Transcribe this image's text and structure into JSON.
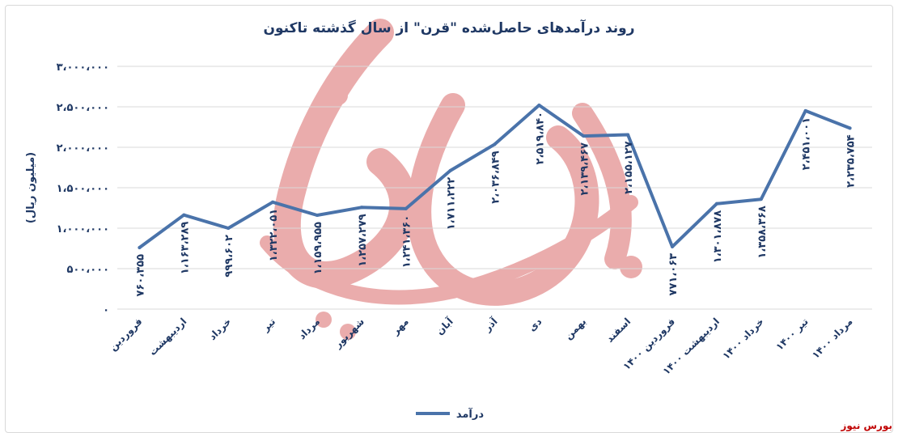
{
  "brand": "بورس نیوز",
  "chart_data": {
    "type": "line",
    "title": "روند درآمدهای حاصل‌شده \"قرن\" از سال گذشته تاکنون",
    "ylabel": "(میلیون ریال)",
    "xlabel": "",
    "ylim": [
      0,
      3000000
    ],
    "yticks": [
      0,
      500000,
      1000000,
      1500000,
      2000000,
      2500000,
      3000000
    ],
    "ytick_labels": [
      "۰",
      "۵۰۰،۰۰۰",
      "۱،۰۰۰،۰۰۰",
      "۱،۵۰۰،۰۰۰",
      "۲،۰۰۰،۰۰۰",
      "۲،۵۰۰،۰۰۰",
      "۳،۰۰۰،۰۰۰"
    ],
    "grid": true,
    "legend_position": "bottom",
    "line_color": "#4a73aa",
    "categories": [
      "فروردین",
      "اردیبهشت",
      "خرداد",
      "تیر",
      "مرداد",
      "شهریور",
      "مهر",
      "آبان",
      "آذر",
      "دی",
      "بهمن",
      "اسفند",
      "فروردین ۱۴۰۰",
      "اردیبهشت ۱۴۰۰",
      "خرداد ۱۴۰۰",
      "تیر ۱۴۰۰",
      "مرداد ۱۴۰۰"
    ],
    "series": [
      {
        "name": "درآمد",
        "values": [
          760355,
          1163289,
          999602,
          1322051,
          1159955,
          1257279,
          1241360,
          1711222,
          2036849,
          2519840,
          2139467,
          2155127,
          771063,
          1301878,
          1358368,
          2451001,
          2235754
        ],
        "value_labels": [
          "۷۶۰،۳۵۵",
          "۱،۱۶۳،۲۸۹",
          "۹۹۹،۶۰۲",
          "۱،۳۲۲،۰۵۱",
          "۱،۱۵۹،۹۵۵",
          "۱،۲۵۷،۲۷۹",
          "۱،۲۴۱،۳۶۰",
          "۱،۷۱۱،۲۲۲",
          "۲،۰۳۶،۸۴۹",
          "۲،۵۱۹،۸۴۰",
          "۲،۱۳۹،۴۶۷",
          "۲،۱۵۵،۱۲۷",
          "۷۷۱،۰۶۳",
          "۱،۳۰۱،۸۷۸",
          "۱،۳۵۸،۳۶۸",
          "۲،۴۵۱،۰۰۱",
          "۲،۲۳۵،۷۵۴"
        ]
      }
    ]
  }
}
